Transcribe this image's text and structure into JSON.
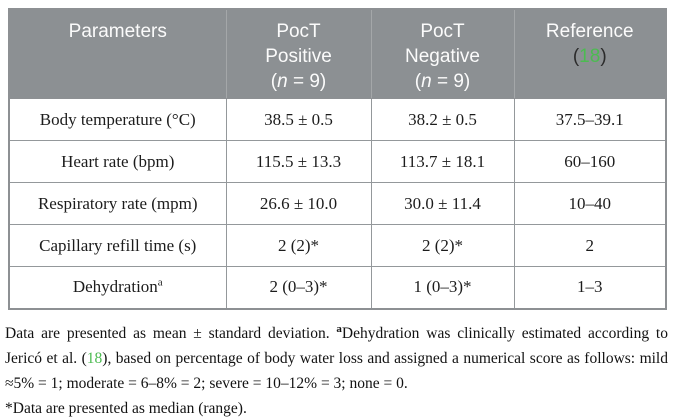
{
  "colors": {
    "header_background": "#8c9093",
    "header_text": "#fbfbfb",
    "reference_link_green": "#4cbb51",
    "table_border": "#94989b",
    "body_text": "#1c1c1c"
  },
  "table": {
    "header": {
      "col1": "Parameters",
      "col2": {
        "line1": "PocT",
        "line2": "Positive",
        "paren_open": "(",
        "n_italic": "n",
        "n_rest": " = 9)"
      },
      "col3": {
        "line1": "PocT",
        "line2": "Negative",
        "paren_open": "(",
        "n_italic": "n",
        "n_rest": " = 9)"
      },
      "col4": {
        "line1": "Reference",
        "paren_open": "(",
        "ref_number": "18",
        "paren_close": ")"
      }
    },
    "rows": [
      {
        "param": "Body temperature (°C)",
        "param_sup": "",
        "poct_positive": "38.5 ± 0.5",
        "poct_negative": "38.2 ± 0.5",
        "reference": "37.5–39.1"
      },
      {
        "param": "Heart rate (bpm)",
        "param_sup": "",
        "poct_positive": "115.5 ± 13.3",
        "poct_negative": "113.7 ± 18.1",
        "reference": "60–160"
      },
      {
        "param": "Respiratory rate (mpm)",
        "param_sup": "",
        "poct_positive": "26.6 ± 10.0",
        "poct_negative": "30.0 ± 11.4",
        "reference": "10–40"
      },
      {
        "param": "Capillary refill time (s)",
        "param_sup": "",
        "poct_positive": "2 (2)*",
        "poct_negative": "2 (2)*",
        "reference": "2"
      },
      {
        "param": "Dehydration",
        "param_sup": "a",
        "poct_positive": "2 (0–3)*",
        "poct_negative": "1 (0–3)*",
        "reference": "1–3"
      }
    ]
  },
  "footnotes": {
    "part1": "Data are presented as mean ± standard deviation. ",
    "sup_a": "a",
    "part2": "Dehydration was clinically estimated according to Jericó et al. (",
    "ref_number": "18",
    "part3": "), based on percentage of body water loss and assigned a numerical score as follows: mild ≈5% = 1; moderate = 6–8% = 2; severe = 10–12% = 3; none = 0.",
    "line2": "*Data are presented as median (range)."
  }
}
